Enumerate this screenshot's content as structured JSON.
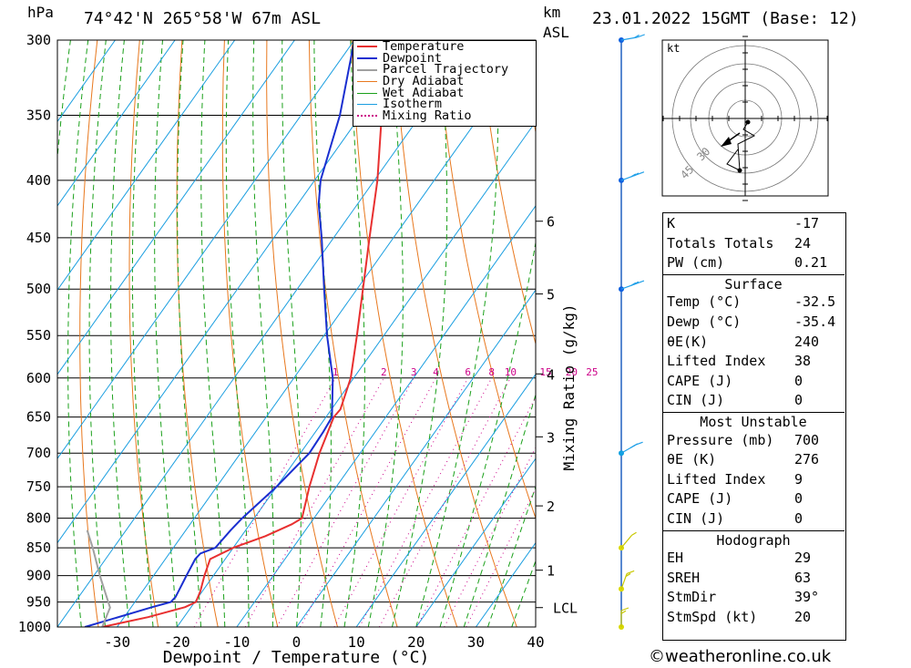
{
  "header": {
    "pressure_unit": "hPa",
    "location": "74°42'N  265°58'W  67m  ASL",
    "height_unit_line1": "km",
    "height_unit_line2": "ASL",
    "datetime": "23.01.2022  15GMT  (Base: 12)"
  },
  "colors": {
    "temperature": "#e83030",
    "dewpoint": "#1a2fd0",
    "parcel": "#a0a0a0",
    "dry_adiabat": "#e8781e",
    "wet_adiabat": "#1aa01a",
    "isotherm": "#1a9ee0",
    "mixing_ratio": "#cc0088",
    "wind": "#2080e0"
  },
  "chart_data": {
    "type": "line",
    "title": "74°42'N  265°58'W  67m  ASL",
    "xlabel": "Dewpoint / Temperature (°C)",
    "ylabel": "hPa",
    "secondary_ylabel": "Mixing Ratio (g/kg)",
    "xlim": [
      -40,
      40
    ],
    "ylim": [
      1000,
      300
    ],
    "x_ticks": [
      "-30",
      "-20",
      "-10",
      "0",
      "10",
      "20",
      "30",
      "40"
    ],
    "pressure_levels": [
      "300",
      "350",
      "400",
      "450",
      "500",
      "550",
      "600",
      "650",
      "700",
      "750",
      "800",
      "850",
      "900",
      "950",
      "1000"
    ],
    "height_labels": [
      {
        "label": "6",
        "p": 435
      },
      {
        "label": "5",
        "p": 505
      },
      {
        "label": "4",
        "p": 595
      },
      {
        "label": "3",
        "p": 677
      },
      {
        "label": "2",
        "p": 780
      },
      {
        "label": "1",
        "p": 890
      },
      {
        "label": "LCL",
        "p": 961
      }
    ],
    "mixing_ratio_labels": [
      "1",
      "2",
      "3",
      "4",
      "6",
      "8",
      "10",
      "15",
      "20",
      "25"
    ],
    "mixing_ratio_values": [
      1,
      2,
      3,
      4,
      6,
      8,
      10,
      15,
      20,
      25
    ],
    "series": [
      {
        "name": "Temperature",
        "points": [
          [
            1000,
            -32.5
          ],
          [
            980,
            -26
          ],
          [
            960,
            -21
          ],
          [
            950,
            -19.8
          ],
          [
            930,
            -20.3
          ],
          [
            900,
            -21.5
          ],
          [
            870,
            -22.5
          ],
          [
            850,
            -20
          ],
          [
            830,
            -16
          ],
          [
            810,
            -13
          ],
          [
            800,
            -12
          ],
          [
            750,
            -14.5
          ],
          [
            700,
            -16.8
          ],
          [
            650,
            -18.7
          ],
          [
            640,
            -18.5
          ],
          [
            600,
            -20.5
          ],
          [
            550,
            -24.5
          ],
          [
            500,
            -29
          ],
          [
            450,
            -34
          ],
          [
            400,
            -39.5
          ],
          [
            350,
            -46.5
          ],
          [
            300,
            -54
          ]
        ]
      },
      {
        "name": "Dewpoint",
        "points": [
          [
            1000,
            -35.4
          ],
          [
            960,
            -26.5
          ],
          [
            950,
            -24
          ],
          [
            940,
            -23.8
          ],
          [
            900,
            -24.5
          ],
          [
            870,
            -25
          ],
          [
            860,
            -24.8
          ],
          [
            850,
            -23
          ],
          [
            820,
            -22.5
          ],
          [
            800,
            -22
          ],
          [
            750,
            -20
          ],
          [
            700,
            -18.5
          ],
          [
            670,
            -18.7
          ],
          [
            650,
            -19
          ],
          [
            600,
            -23.5
          ],
          [
            550,
            -29.5
          ],
          [
            500,
            -35.5
          ],
          [
            450,
            -42
          ],
          [
            420,
            -46.5
          ],
          [
            400,
            -49
          ],
          [
            350,
            -53.5
          ],
          [
            300,
            -60
          ]
        ]
      },
      {
        "name": "Parcel Trajectory",
        "points": [
          [
            1000,
            -32.5
          ],
          [
            961,
            -33.5
          ],
          [
            900,
            -39
          ],
          [
            850,
            -43.5
          ],
          [
            820,
            -46.5
          ]
        ]
      },
      {
        "name": "Dry Adiabat"
      },
      {
        "name": "Wet Adiabat"
      },
      {
        "name": "Isotherm"
      },
      {
        "name": "Mixing Ratio"
      }
    ]
  },
  "wind_profile": {
    "levels": [
      {
        "p": 300,
        "speed": 10,
        "dir": 260
      },
      {
        "p": 400,
        "speed": 15,
        "dir": 250
      },
      {
        "p": 500,
        "speed": 15,
        "dir": 250
      },
      {
        "p": 700,
        "speed": 15,
        "dir": 240
      },
      {
        "p": 850,
        "speed": 5,
        "dir": 220
      },
      {
        "p": 925,
        "speed": 10,
        "dir": 200
      },
      {
        "p": 1000,
        "speed": 10,
        "dir": 180
      }
    ]
  },
  "hodograph": {
    "unit": "kt",
    "ring_labels": [
      "30",
      "45"
    ]
  },
  "indices": {
    "top": [
      {
        "label": "K",
        "value": "-17"
      },
      {
        "label": "Totals Totals",
        "value": "24"
      },
      {
        "label": "PW (cm)",
        "value": "0.21"
      }
    ],
    "surface": {
      "title": "Surface",
      "rows": [
        {
          "label": "Temp (°C)",
          "value": "-32.5"
        },
        {
          "label": "Dewp (°C)",
          "value": "-35.4"
        },
        {
          "label": "θE(K)",
          "value": "240"
        },
        {
          "label": "Lifted Index",
          "value": "38"
        },
        {
          "label": "CAPE (J)",
          "value": "0"
        },
        {
          "label": "CIN (J)",
          "value": "0"
        }
      ]
    },
    "most_unstable": {
      "title": "Most Unstable",
      "rows": [
        {
          "label": "Pressure (mb)",
          "value": "700"
        },
        {
          "label": "θE (K)",
          "value": "276"
        },
        {
          "label": "Lifted Index",
          "value": "9"
        },
        {
          "label": "CAPE (J)",
          "value": "0"
        },
        {
          "label": "CIN (J)",
          "value": "0"
        }
      ]
    },
    "hodograph": {
      "title": "Hodograph",
      "rows": [
        {
          "label": "EH",
          "value": "29"
        },
        {
          "label": "SREH",
          "value": "63"
        },
        {
          "label": "StmDir",
          "value": "39°"
        },
        {
          "label": "StmSpd (kt)",
          "value": "20"
        }
      ]
    }
  },
  "credit": "©weatheronline.co.uk"
}
